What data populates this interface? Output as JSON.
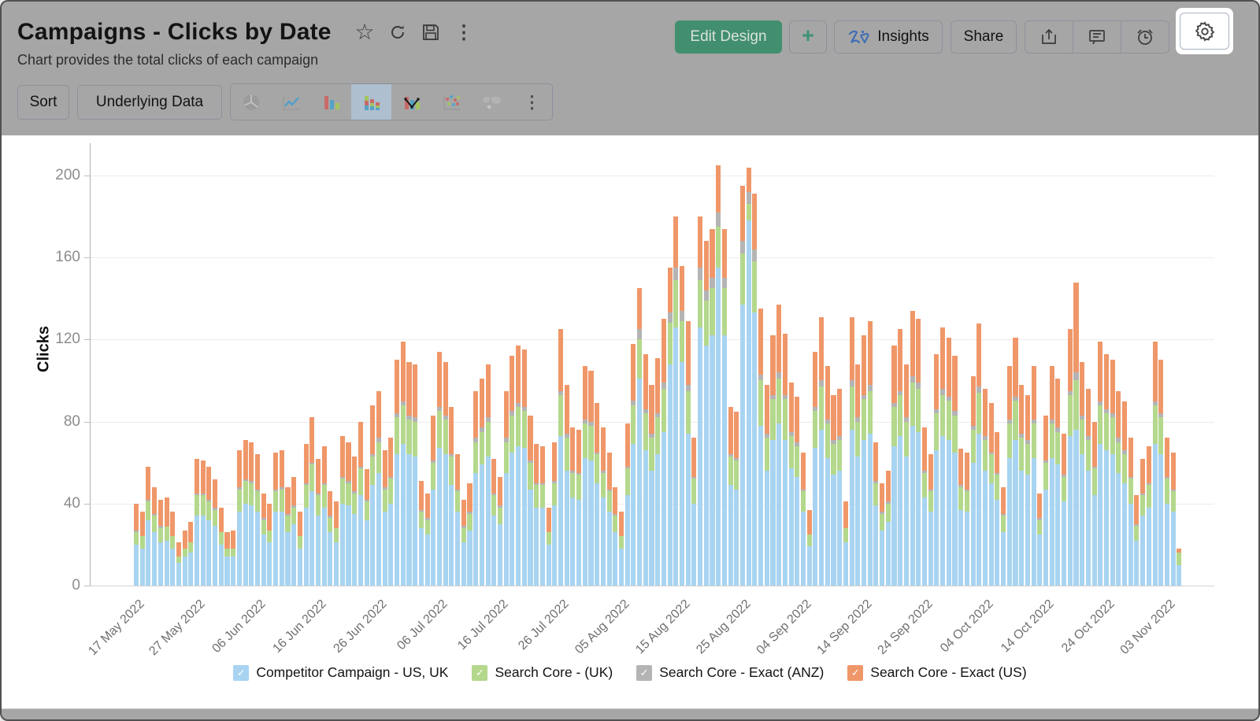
{
  "header": {
    "title": "Campaigns - Clicks by Date",
    "subtitle": "Chart provides the total clicks of each campaign",
    "title_icons": [
      "star-icon",
      "refresh-icon",
      "save-icon",
      "more-icon"
    ]
  },
  "actions": {
    "edit_design": "Edit Design",
    "add": "+",
    "insights": "Insights",
    "share": "Share",
    "icon_buttons": [
      "export-icon",
      "comment-icon",
      "alert-icon"
    ],
    "highlighted": "settings-icon"
  },
  "toolbar": {
    "sort": "Sort",
    "underlying_data": "Underlying Data",
    "chart_types": [
      "pie-chart",
      "line-chart",
      "bar-chart",
      "stacked-bar-chart",
      "combo-chart",
      "scatter-chart",
      "map-chart",
      "more-chart-types"
    ],
    "selected_chart_type": "stacked-bar-chart"
  },
  "colors": {
    "series_blue": "#a8d4f1",
    "series_green": "#b4d88c",
    "series_gray": "#b4b4b4",
    "series_orange": "#f09769",
    "edit_design_green": "#428f70",
    "zia_blue": "#3f6eb5",
    "selected_icon_bg": "#aebfd0",
    "overlay_gray": "#a6a6a6"
  },
  "chart_data": {
    "type": "bar",
    "subtype": "stacked",
    "ylabel": "Clicks",
    "xlabel": "",
    "y_ticks": [
      0,
      40,
      80,
      120,
      160,
      200
    ],
    "ylim": [
      0,
      215
    ],
    "x_tick_labels": [
      "17 May 2022",
      "27 May 2022",
      "06 Jun 2022",
      "16 Jun 2022",
      "26 Jun 2022",
      "06 Jul 2022",
      "16 Jul 2022",
      "26 Jul 2022",
      "05 Aug 2022",
      "15 Aug 2022",
      "25 Aug 2022",
      "04 Sep 2022",
      "14 Sep 2022",
      "24 Sep 2022",
      "04 Oct 2022",
      "14 Oct 2022",
      "24 Oct 2022",
      "03 Nov 2022"
    ],
    "x_tick_every": 10,
    "grid": "horizontal",
    "legend_position": "bottom",
    "series": [
      {
        "name": "Competitor Campaign - US, UK",
        "color": "#a8d4f1"
      },
      {
        "name": "Search Core - (UK)",
        "color": "#b4d88c"
      },
      {
        "name": "Search Core - Exact (ANZ)",
        "color": "#b4b4b4"
      },
      {
        "name": "Search Core - Exact (US)",
        "color": "#f09769"
      }
    ],
    "bars": [
      [
        20,
        6,
        1,
        13
      ],
      [
        18,
        6,
        0,
        12
      ],
      [
        32,
        9,
        1,
        16
      ],
      [
        26,
        8,
        1,
        13
      ],
      [
        21,
        7,
        1,
        13
      ],
      [
        22,
        7,
        0,
        14
      ],
      [
        18,
        6,
        0,
        12
      ],
      [
        11,
        3,
        0,
        7
      ],
      [
        14,
        4,
        0,
        9
      ],
      [
        16,
        5,
        0,
        10
      ],
      [
        34,
        10,
        1,
        17
      ],
      [
        34,
        10,
        1,
        16
      ],
      [
        32,
        9,
        1,
        16
      ],
      [
        29,
        8,
        1,
        14
      ],
      [
        20,
        6,
        0,
        12
      ],
      [
        14,
        4,
        0,
        8
      ],
      [
        14,
        4,
        0,
        9
      ],
      [
        36,
        11,
        1,
        18
      ],
      [
        40,
        11,
        1,
        19
      ],
      [
        39,
        11,
        1,
        19
      ],
      [
        36,
        10,
        1,
        17
      ],
      [
        25,
        7,
        1,
        12
      ],
      [
        21,
        6,
        0,
        13
      ],
      [
        36,
        10,
        1,
        18
      ],
      [
        36,
        11,
        1,
        18
      ],
      [
        26,
        8,
        1,
        13
      ],
      [
        30,
        8,
        1,
        14
      ],
      [
        18,
        6,
        0,
        12
      ],
      [
        38,
        11,
        1,
        19
      ],
      [
        46,
        13,
        1,
        22
      ],
      [
        34,
        10,
        1,
        17
      ],
      [
        38,
        11,
        1,
        18
      ],
      [
        26,
        7,
        1,
        12
      ],
      [
        21,
        7,
        0,
        13
      ],
      [
        40,
        12,
        1,
        20
      ],
      [
        39,
        11,
        1,
        19
      ],
      [
        35,
        10,
        1,
        17
      ],
      [
        44,
        13,
        1,
        22
      ],
      [
        32,
        9,
        1,
        15
      ],
      [
        49,
        14,
        1,
        24
      ],
      [
        55,
        15,
        2,
        23
      ],
      [
        36,
        11,
        1,
        18
      ],
      [
        40,
        12,
        1,
        19
      ],
      [
        64,
        18,
        2,
        26
      ],
      [
        69,
        19,
        2,
        29
      ],
      [
        64,
        17,
        2,
        26
      ],
      [
        63,
        17,
        2,
        26
      ],
      [
        28,
        8,
        1,
        14
      ],
      [
        25,
        7,
        1,
        12
      ],
      [
        47,
        13,
        1,
        22
      ],
      [
        67,
        18,
        2,
        27
      ],
      [
        64,
        17,
        2,
        26
      ],
      [
        49,
        14,
        1,
        23
      ],
      [
        36,
        10,
        1,
        17
      ],
      [
        21,
        7,
        1,
        13
      ],
      [
        27,
        8,
        1,
        14
      ],
      [
        55,
        15,
        2,
        23
      ],
      [
        59,
        16,
        2,
        24
      ],
      [
        63,
        17,
        2,
        26
      ],
      [
        34,
        10,
        1,
        17
      ],
      [
        30,
        8,
        1,
        14
      ],
      [
        55,
        15,
        2,
        23
      ],
      [
        65,
        18,
        2,
        27
      ],
      [
        68,
        19,
        2,
        28
      ],
      [
        67,
        18,
        2,
        28
      ],
      [
        47,
        13,
        1,
        22
      ],
      [
        38,
        11,
        1,
        19
      ],
      [
        38,
        11,
        1,
        18
      ],
      [
        20,
        6,
        0,
        12
      ],
      [
        39,
        11,
        1,
        19
      ],
      [
        73,
        20,
        2,
        30
      ],
      [
        56,
        16,
        2,
        24
      ],
      [
        43,
        12,
        1,
        21
      ],
      [
        42,
        12,
        1,
        21
      ],
      [
        62,
        17,
        2,
        26
      ],
      [
        61,
        17,
        2,
        25
      ],
      [
        50,
        14,
        1,
        24
      ],
      [
        43,
        12,
        1,
        21
      ],
      [
        36,
        10,
        1,
        18
      ],
      [
        26,
        8,
        1,
        13
      ],
      [
        18,
        6,
        0,
        12
      ],
      [
        44,
        13,
        1,
        21
      ],
      [
        69,
        19,
        2,
        28
      ],
      [
        101,
        19,
        5,
        20
      ],
      [
        66,
        18,
        2,
        27
      ],
      [
        56,
        16,
        2,
        24
      ],
      [
        64,
        18,
        2,
        27
      ],
      [
        75,
        21,
        3,
        31
      ],
      [
        108,
        20,
        5,
        22
      ],
      [
        126,
        23,
        6,
        25
      ],
      [
        109,
        20,
        5,
        22
      ],
      [
        74,
        21,
        3,
        31
      ],
      [
        40,
        12,
        1,
        19
      ],
      [
        126,
        23,
        6,
        25
      ],
      [
        117,
        22,
        5,
        24
      ],
      [
        122,
        23,
        5,
        24
      ],
      [
        155,
        20,
        7,
        23
      ],
      [
        122,
        23,
        5,
        24
      ],
      [
        49,
        14,
        1,
        23
      ],
      [
        47,
        14,
        1,
        23
      ],
      [
        137,
        25,
        6,
        27
      ],
      [
        178,
        8,
        6,
        12
      ],
      [
        133,
        25,
        6,
        27
      ],
      [
        78,
        22,
        3,
        32
      ],
      [
        56,
        16,
        2,
        24
      ],
      [
        71,
        20,
        2,
        29
      ],
      [
        79,
        22,
        3,
        33
      ],
      [
        71,
        20,
        2,
        30
      ],
      [
        57,
        16,
        2,
        24
      ],
      [
        53,
        15,
        2,
        22
      ],
      [
        36,
        10,
        1,
        18
      ],
      [
        19,
        6,
        0,
        12
      ],
      [
        67,
        18,
        2,
        27
      ],
      [
        76,
        21,
        3,
        31
      ],
      [
        62,
        17,
        2,
        26
      ],
      [
        54,
        15,
        2,
        22
      ],
      [
        56,
        15,
        2,
        23
      ],
      [
        21,
        7,
        0,
        13
      ],
      [
        76,
        21,
        3,
        31
      ],
      [
        63,
        17,
        2,
        26
      ],
      [
        71,
        20,
        2,
        29
      ],
      [
        74,
        21,
        3,
        31
      ],
      [
        39,
        11,
        1,
        19
      ],
      [
        27,
        8,
        1,
        14
      ],
      [
        31,
        9,
        1,
        15
      ],
      [
        68,
        19,
        2,
        28
      ],
      [
        73,
        20,
        2,
        30
      ],
      [
        63,
        17,
        2,
        26
      ],
      [
        78,
        21,
        3,
        32
      ],
      [
        75,
        21,
        3,
        31
      ],
      [
        43,
        12,
        1,
        21
      ],
      [
        36,
        10,
        1,
        17
      ],
      [
        66,
        18,
        2,
        27
      ],
      [
        73,
        20,
        3,
        30
      ],
      [
        71,
        19,
        2,
        29
      ],
      [
        65,
        18,
        2,
        27
      ],
      [
        37,
        11,
        1,
        18
      ],
      [
        36,
        10,
        1,
        18
      ],
      [
        60,
        16,
        2,
        24
      ],
      [
        74,
        20,
        3,
        31
      ],
      [
        56,
        15,
        2,
        23
      ],
      [
        50,
        14,
        1,
        24
      ],
      [
        42,
        12,
        1,
        20
      ],
      [
        26,
        8,
        1,
        13
      ],
      [
        62,
        17,
        2,
        26
      ],
      [
        71,
        19,
        2,
        29
      ],
      [
        56,
        16,
        2,
        24
      ],
      [
        54,
        15,
        2,
        22
      ],
      [
        62,
        17,
        2,
        26
      ],
      [
        25,
        7,
        1,
        12
      ],
      [
        47,
        13,
        1,
        22
      ],
      [
        62,
        17,
        2,
        26
      ],
      [
        59,
        16,
        2,
        24
      ],
      [
        41,
        12,
        1,
        20
      ],
      [
        73,
        20,
        2,
        30
      ],
      [
        76,
        24,
        4,
        44
      ],
      [
        64,
        17,
        2,
        26
      ],
      [
        56,
        15,
        2,
        23
      ],
      [
        44,
        13,
        1,
        22
      ],
      [
        69,
        19,
        2,
        29
      ],
      [
        66,
        18,
        2,
        27
      ],
      [
        64,
        18,
        2,
        26
      ],
      [
        55,
        15,
        2,
        23
      ],
      [
        50,
        14,
        2,
        24
      ],
      [
        40,
        12,
        1,
        19
      ],
      [
        22,
        7,
        1,
        14
      ],
      [
        34,
        10,
        1,
        17
      ],
      [
        38,
        11,
        1,
        18
      ],
      [
        69,
        19,
        2,
        29
      ],
      [
        64,
        18,
        2,
        26
      ],
      [
        40,
        12,
        1,
        19
      ],
      [
        36,
        10,
        1,
        18
      ],
      [
        10,
        6,
        0,
        2
      ]
    ]
  }
}
